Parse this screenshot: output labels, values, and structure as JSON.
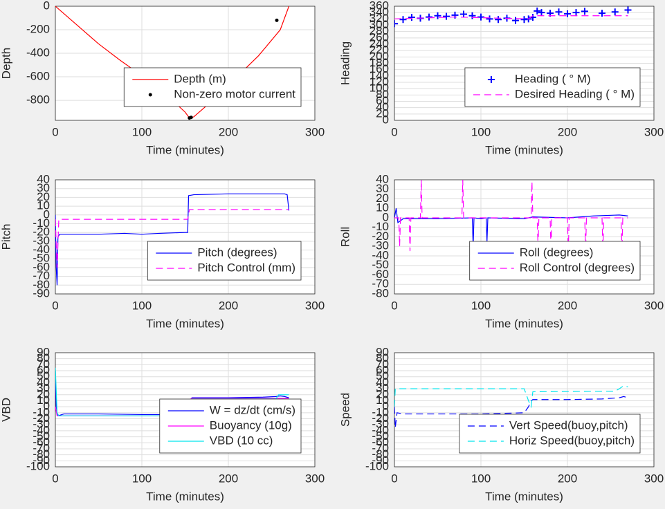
{
  "chart_data": [
    {
      "type": "line",
      "xlabel": "Time (minutes)",
      "ylabel": "Depth",
      "xlim": [
        0,
        300
      ],
      "xticks": [
        0,
        100,
        200,
        300
      ],
      "ylim": [
        -970,
        0
      ],
      "yticks": [
        0,
        -200,
        -400,
        -600,
        -800
      ],
      "grid": true,
      "legend": "lower right",
      "series": [
        {
          "name": "Depth (m)",
          "color": "#ff0000",
          "style": "solid",
          "x": [
            0,
            25,
            50,
            75,
            100,
            125,
            150,
            155,
            160,
            185,
            210,
            235,
            260,
            270
          ],
          "values": [
            0,
            -160,
            -320,
            -460,
            -590,
            -730,
            -900,
            -950,
            -940,
            -780,
            -600,
            -420,
            -200,
            0
          ]
        },
        {
          "name": "Non-zero motor current",
          "color": "#000000",
          "style": "dot",
          "x": [
            155,
            157,
            256
          ],
          "values": [
            -950,
            -945,
            -120
          ]
        }
      ]
    },
    {
      "type": "line",
      "xlabel": "Time (minutes)",
      "ylabel": "Heading",
      "xlim": [
        0,
        300
      ],
      "xticks": [
        0,
        100,
        200,
        300
      ],
      "ylim": [
        0,
        360
      ],
      "yticks": [
        0,
        20,
        40,
        60,
        80,
        100,
        120,
        140,
        160,
        180,
        200,
        220,
        240,
        260,
        280,
        300,
        320,
        340,
        360
      ],
      "grid": true,
      "legend": "lower right",
      "series": [
        {
          "name": "Heading ( ° M)",
          "color": "#0000ff",
          "style": "plus",
          "x": [
            0,
            10,
            20,
            30,
            40,
            50,
            60,
            70,
            80,
            90,
            100,
            110,
            120,
            130,
            140,
            150,
            155,
            160,
            165,
            170,
            180,
            190,
            200,
            210,
            220,
            240,
            255,
            270
          ],
          "values": [
            305,
            318,
            325,
            322,
            326,
            330,
            328,
            332,
            335,
            330,
            326,
            320,
            318,
            322,
            315,
            318,
            320,
            325,
            345,
            340,
            338,
            342,
            336,
            340,
            344,
            338,
            342,
            348
          ]
        },
        {
          "name": "Desired Heading ( ° M)",
          "color": "#ff00ff",
          "style": "dashed",
          "x": [
            0,
            70,
            155,
            160,
            270
          ],
          "values": [
            320,
            326,
            320,
            330,
            330
          ]
        }
      ]
    },
    {
      "type": "line",
      "xlabel": "Time (minutes)",
      "ylabel": "Pitch",
      "xlim": [
        0,
        300
      ],
      "xticks": [
        0,
        100,
        200,
        300
      ],
      "ylim": [
        -90,
        40
      ],
      "yticks": [
        40,
        30,
        20,
        10,
        0,
        -10,
        -20,
        -30,
        -40,
        -50,
        -60,
        -70,
        -80,
        -90
      ],
      "grid": true,
      "legend": "lower right",
      "series": [
        {
          "name": "Pitch (degrees)",
          "color": "#0000ff",
          "style": "solid",
          "x": [
            0,
            1,
            2,
            3,
            5,
            50,
            80,
            100,
            120,
            150,
            153,
            154,
            160,
            200,
            240,
            265,
            268,
            270
          ],
          "values": [
            0,
            -60,
            -80,
            -25,
            -22,
            -22,
            -21,
            -22,
            -21,
            -20,
            -20,
            22,
            23,
            24,
            24,
            24,
            23,
            5
          ]
        },
        {
          "name": "Pitch Control (mm)",
          "color": "#ff00ff",
          "style": "dashed",
          "x": [
            0,
            2,
            4,
            153,
            155,
            270
          ],
          "values": [
            -5,
            -60,
            -5,
            -5,
            6,
            6
          ]
        }
      ]
    },
    {
      "type": "line",
      "xlabel": "Time (minutes)",
      "ylabel": "Roll",
      "xlim": [
        0,
        300
      ],
      "xticks": [
        0,
        100,
        200,
        300
      ],
      "ylim": [
        -80,
        40
      ],
      "yticks": [
        40,
        30,
        20,
        10,
        0,
        -10,
        -20,
        -30,
        -40,
        -50,
        -60,
        -70,
        -80
      ],
      "grid": true,
      "legend": "lower right",
      "series": [
        {
          "name": "Roll (degrees)",
          "color": "#0000ff",
          "style": "solid",
          "x": [
            0,
            2,
            4,
            10,
            50,
            90,
            91,
            92,
            100,
            106,
            107,
            108,
            150,
            160,
            200,
            230,
            260,
            270
          ],
          "values": [
            0,
            10,
            -5,
            -1,
            -1,
            0,
            -30,
            0,
            -1,
            0,
            -25,
            0,
            -1,
            1,
            0,
            2,
            3,
            2
          ]
        },
        {
          "name": "Roll Control (degrees)",
          "color": "#ff00ff",
          "style": "dashed",
          "x": [
            0,
            5,
            6,
            7,
            17,
            18,
            19,
            30,
            31,
            32,
            78,
            79,
            80,
            158,
            159,
            160,
            165,
            166,
            167,
            180,
            181,
            182,
            200,
            201,
            202,
            220,
            221,
            222,
            240,
            241,
            242,
            262,
            263,
            264,
            270
          ],
          "values": [
            0,
            0,
            -30,
            0,
            0,
            -35,
            0,
            0,
            40,
            0,
            0,
            40,
            0,
            0,
            38,
            0,
            0,
            -30,
            0,
            0,
            -35,
            0,
            0,
            -35,
            0,
            0,
            -35,
            0,
            0,
            -35,
            0,
            0,
            -35,
            0,
            0
          ]
        }
      ]
    },
    {
      "type": "line",
      "xlabel": "Time (minutes)",
      "ylabel": "VBD",
      "xlim": [
        0,
        300
      ],
      "xticks": [
        0,
        100,
        200,
        300
      ],
      "ylim": [
        -100,
        90
      ],
      "yticks": [
        90,
        80,
        70,
        60,
        50,
        40,
        30,
        20,
        10,
        0,
        -10,
        -20,
        -30,
        -40,
        -50,
        -60,
        -70,
        -80,
        -90,
        -100
      ],
      "grid": true,
      "legend": "lower right",
      "series": [
        {
          "name": "W = dz/dt (cm/s)",
          "color": "#0000ff",
          "style": "solid",
          "x": [
            0,
            1,
            3,
            10,
            50,
            100,
            150,
            153,
            155,
            158,
            200,
            240,
            255,
            260,
            265,
            270
          ],
          "values": [
            60,
            -5,
            -15,
            -12,
            -12,
            -13,
            -13,
            -12,
            10,
            15,
            15,
            16,
            17,
            18,
            17,
            15
          ]
        },
        {
          "name": "Buoyancy (10g)",
          "color": "#ff00ff",
          "style": "solid",
          "x": [
            0,
            2,
            4,
            153,
            155,
            158,
            270
          ],
          "values": [
            0,
            -15,
            -15,
            -15,
            12,
            14,
            14
          ]
        },
        {
          "name": "VBD (10 cc)",
          "color": "#00e5ee",
          "style": "solid",
          "x": [
            0,
            2,
            4,
            153,
            155,
            158,
            255,
            258,
            270
          ],
          "values": [
            65,
            -10,
            -15,
            -15,
            10,
            13,
            13,
            20,
            20
          ]
        }
      ]
    },
    {
      "type": "line",
      "xlabel": "Time (minutes)",
      "ylabel": "Speed",
      "xlim": [
        0,
        300
      ],
      "xticks": [
        0,
        100,
        200,
        300
      ],
      "ylim": [
        -100,
        90
      ],
      "yticks": [
        90,
        80,
        70,
        60,
        50,
        40,
        30,
        20,
        10,
        0,
        -10,
        -20,
        -30,
        -40,
        -50,
        -60,
        -70,
        -80,
        -90,
        -100
      ],
      "grid": true,
      "legend": "lower right",
      "series": [
        {
          "name": "Vert Speed(buoy,pitch)",
          "color": "#0000ff",
          "style": "dashed",
          "x": [
            0,
            1,
            3,
            10,
            100,
            150,
            155,
            158,
            160,
            200,
            240,
            260,
            265,
            270
          ],
          "values": [
            0,
            -35,
            -10,
            -12,
            -12,
            -10,
            0,
            10,
            12,
            12,
            13,
            15,
            17,
            15
          ]
        },
        {
          "name": "Horiz Speed(buoy,pitch)",
          "color": "#00e5ee",
          "style": "dashed",
          "x": [
            0,
            1,
            3,
            150,
            155,
            158,
            160,
            255,
            260,
            265,
            270
          ],
          "values": [
            0,
            30,
            30,
            30,
            10,
            0,
            25,
            26,
            30,
            35,
            33
          ]
        }
      ]
    }
  ]
}
